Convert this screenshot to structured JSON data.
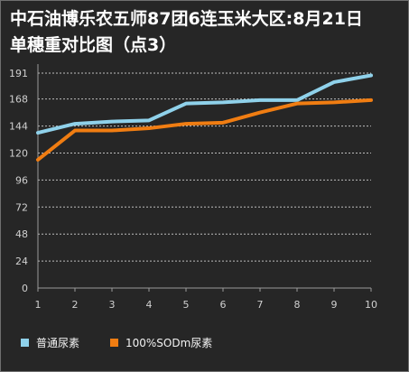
{
  "chart_data": {
    "type": "line",
    "title_line1": "中石油博乐农五师87团6连玉米大区:8月21日",
    "title_line2": "单穗重对比图（点3）",
    "xlabel": "",
    "ylabel": "",
    "x": [
      1,
      2,
      3,
      4,
      5,
      6,
      7,
      8,
      9,
      10
    ],
    "x_ticks": [
      "1",
      "2",
      "3",
      "4",
      "5",
      "6",
      "7",
      "8",
      "9",
      "10"
    ],
    "y_ticks": [
      "0",
      "24",
      "48",
      "72",
      "96",
      "120",
      "144",
      "168",
      "191"
    ],
    "ylim": [
      0,
      191
    ],
    "grid": true,
    "legend_position": "bottom",
    "series": [
      {
        "name": "普通尿素",
        "color": "#8fd1ea",
        "values": [
          138,
          146,
          148,
          149,
          164,
          165,
          167,
          167,
          183,
          189
        ]
      },
      {
        "name": "100%SODm尿素",
        "color": "#f07d12",
        "values": [
          114,
          140,
          140,
          142,
          146,
          147,
          156,
          164,
          165,
          167
        ]
      }
    ]
  }
}
